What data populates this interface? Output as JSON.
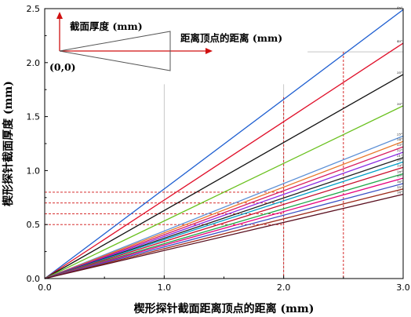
{
  "chart_data": {
    "type": "line",
    "xlabel": "楔形探针截面距离顶点的距离 (mm)",
    "ylabel": "楔形探针截面厚度 (mm)",
    "xlim": [
      0,
      3
    ],
    "ylim": [
      0,
      2.5
    ],
    "x_ticks": [
      0,
      1,
      2,
      3
    ],
    "x_tick_labels": [
      "0.0",
      "1.0",
      "2.0",
      "3.0"
    ],
    "y_ticks": [
      0,
      0.5,
      1,
      1.5,
      2,
      2.5
    ],
    "y_tick_labels": [
      "0.0",
      "0.5",
      "1.0",
      "1.5",
      "2.0",
      "2.5"
    ],
    "series": [
      {
        "name": "45°",
        "color": "#1f5fd1",
        "x": [
          0,
          3
        ],
        "y": [
          0,
          2.49
        ]
      },
      {
        "name": "40°",
        "color": "#e0102a",
        "x": [
          0,
          3
        ],
        "y": [
          0,
          2.18
        ]
      },
      {
        "name": "35°",
        "color": "#111111",
        "x": [
          0,
          3
        ],
        "y": [
          0,
          1.89
        ]
      },
      {
        "name": "30°",
        "color": "#6ac11f",
        "x": [
          0,
          3
        ],
        "y": [
          0,
          1.6
        ]
      },
      {
        "name": "25°",
        "color": "#5b8fd6",
        "x": [
          0,
          3
        ],
        "y": [
          0,
          1.32
        ]
      },
      {
        "name": "24°",
        "color": "#e8762a",
        "x": [
          0,
          3
        ],
        "y": [
          0,
          1.27
        ]
      },
      {
        "name": "23°",
        "color": "#d81b60",
        "x": [
          0,
          3
        ],
        "y": [
          0,
          1.22
        ]
      },
      {
        "name": "22°",
        "color": "#8a2be2",
        "x": [
          0,
          3
        ],
        "y": [
          0,
          1.17
        ]
      },
      {
        "name": "21°",
        "color": "#222222",
        "x": [
          0,
          3
        ],
        "y": [
          0,
          1.12
        ]
      },
      {
        "name": "20°",
        "color": "#00a0c8",
        "x": [
          0,
          3
        ],
        "y": [
          0,
          1.08
        ]
      },
      {
        "name": "19°",
        "color": "#c8102e",
        "x": [
          0,
          3
        ],
        "y": [
          0,
          1.03
        ]
      },
      {
        "name": "18°",
        "color": "#1fa84a",
        "x": [
          0,
          3
        ],
        "y": [
          0,
          0.97
        ]
      },
      {
        "name": "17°",
        "color": "#e6007e",
        "x": [
          0,
          3
        ],
        "y": [
          0,
          0.93
        ]
      },
      {
        "name": "16°",
        "color": "#3a4fc4",
        "x": [
          0,
          3
        ],
        "y": [
          0,
          0.88
        ]
      },
      {
        "name": "15°",
        "color": "#9c2a1a",
        "x": [
          0,
          3
        ],
        "y": [
          0,
          0.83
        ]
      },
      {
        "name": "14°",
        "color": "#5a1020",
        "x": [
          0,
          3
        ],
        "y": [
          0,
          0.78
        ]
      }
    ],
    "reference_lines": {
      "vertical": [
        {
          "x": 2.0,
          "color": "#d01010",
          "style": "dashed"
        },
        {
          "x": 2.5,
          "color": "#d01010",
          "style": "dashed"
        }
      ],
      "horizontal": [
        {
          "y": 0.8,
          "color": "#d01010",
          "style": "dashed"
        },
        {
          "y": 0.7,
          "color": "#d01010",
          "style": "dashed"
        },
        {
          "y": 0.6,
          "color": "#d01010",
          "style": "dashed"
        },
        {
          "y": 0.5,
          "color": "#d01010",
          "style": "dashed"
        }
      ],
      "gridlines_gray": [
        1.0,
        2.0
      ]
    },
    "inset": {
      "y_label": "截面厚度 (mm)",
      "x_label": "距离顶点的距离 (mm)",
      "origin_label": "(0,0)"
    }
  }
}
